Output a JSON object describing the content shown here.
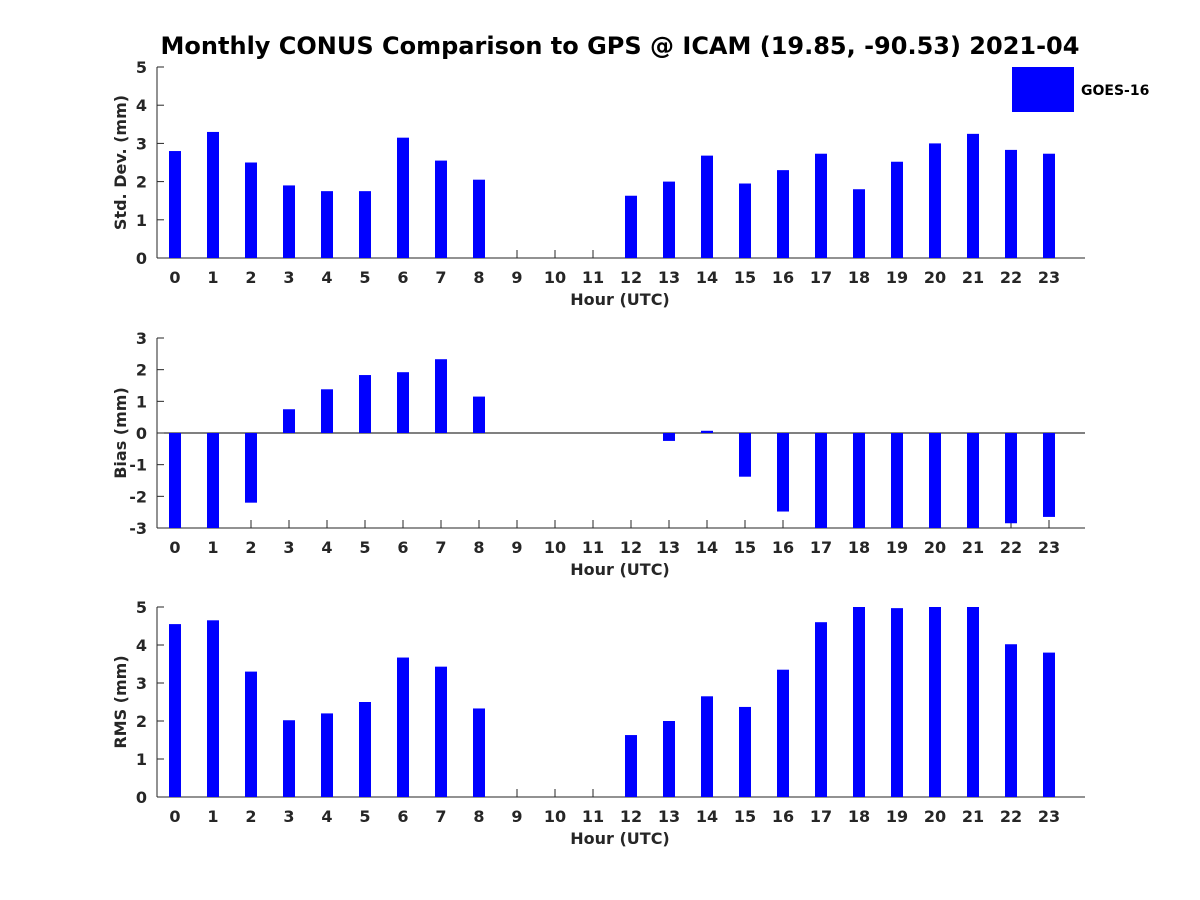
{
  "chart_data": {
    "title": "Monthly CONUS Comparison to GPS @ ICAM (19.85, -90.53) 2021-04",
    "legend": {
      "label": "GOES-16",
      "color": "#0000ff",
      "position": "top-right"
    },
    "bar_color": "#0000ff",
    "panels": [
      {
        "type": "bar",
        "ylabel": "Std. Dev. (mm)",
        "xlabel": "Hour (UTC)",
        "ylim": [
          0,
          5
        ],
        "yticks": [
          0,
          1,
          2,
          3,
          4,
          5
        ],
        "categories": [
          "0",
          "1",
          "2",
          "3",
          "4",
          "5",
          "6",
          "7",
          "8",
          "9",
          "10",
          "11",
          "12",
          "13",
          "14",
          "15",
          "16",
          "17",
          "18",
          "19",
          "20",
          "21",
          "22",
          "23"
        ],
        "values": [
          2.8,
          3.3,
          2.5,
          1.9,
          1.75,
          1.75,
          3.15,
          2.55,
          2.05,
          null,
          null,
          null,
          1.63,
          2.0,
          2.68,
          1.95,
          2.3,
          2.73,
          1.8,
          2.52,
          3.0,
          3.25,
          2.83,
          2.73
        ]
      },
      {
        "type": "bar",
        "ylabel": "Bias (mm)",
        "xlabel": "Hour (UTC)",
        "ylim": [
          -3,
          3
        ],
        "yticks": [
          -3,
          -2,
          -1,
          0,
          1,
          2,
          3
        ],
        "categories": [
          "0",
          "1",
          "2",
          "3",
          "4",
          "5",
          "6",
          "7",
          "8",
          "9",
          "10",
          "11",
          "12",
          "13",
          "14",
          "15",
          "16",
          "17",
          "18",
          "19",
          "20",
          "21",
          "22",
          "23"
        ],
        "values": [
          -3.0,
          -3.0,
          -2.2,
          0.75,
          1.38,
          1.83,
          1.92,
          2.33,
          1.15,
          null,
          null,
          null,
          null,
          -0.25,
          0.07,
          -1.38,
          -2.48,
          -3.0,
          -3.0,
          -3.0,
          -3.0,
          -3.0,
          -2.85,
          -2.65
        ]
      },
      {
        "type": "bar",
        "ylabel": "RMS (mm)",
        "xlabel": "Hour (UTC)",
        "ylim": [
          0,
          5
        ],
        "yticks": [
          0,
          1,
          2,
          3,
          4,
          5
        ],
        "categories": [
          "0",
          "1",
          "2",
          "3",
          "4",
          "5",
          "6",
          "7",
          "8",
          "9",
          "10",
          "11",
          "12",
          "13",
          "14",
          "15",
          "16",
          "17",
          "18",
          "19",
          "20",
          "21",
          "22",
          "23"
        ],
        "values": [
          4.55,
          4.65,
          3.3,
          2.02,
          2.2,
          2.5,
          3.67,
          3.43,
          2.33,
          null,
          null,
          null,
          1.63,
          2.0,
          2.65,
          2.37,
          3.35,
          4.6,
          5.0,
          4.97,
          5.0,
          5.0,
          4.02,
          3.8
        ]
      }
    ]
  }
}
